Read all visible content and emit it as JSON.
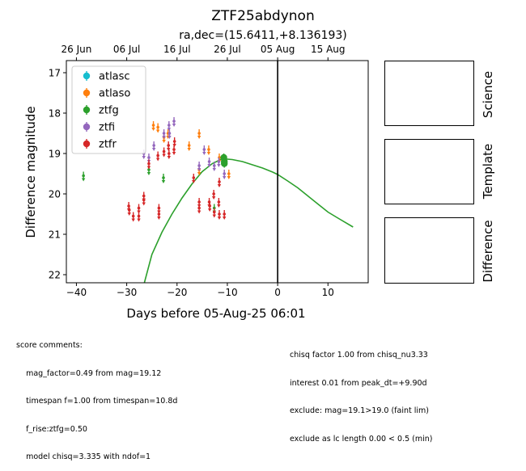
{
  "chart_data": {
    "type": "scatter",
    "title": "ZTF25abdynon",
    "subtitle": "ra,dec=(15.6411,+8.136193)",
    "xlabel": "Days before 05-Aug-25 06:01",
    "ylabel": "Difference magnitude",
    "xlim": [
      -42,
      18
    ],
    "ylim": [
      22.2,
      16.7
    ],
    "x_ticks": [
      -40,
      -30,
      -20,
      -10,
      0,
      10
    ],
    "y_ticks": [
      17,
      18,
      19,
      20,
      21,
      22
    ],
    "top_axis_ticks": [
      {
        "x": -40,
        "label": "26 Jun"
      },
      {
        "x": -30,
        "label": "06 Jul"
      },
      {
        "x": -20,
        "label": "16 Jul"
      },
      {
        "x": -10,
        "label": "26 Jul"
      },
      {
        "x": 0,
        "label": "05 Aug"
      },
      {
        "x": 10,
        "label": "15 Aug"
      }
    ],
    "reference_line_x": 0,
    "legend_position": "upper-left",
    "series": [
      {
        "name": "atlasc",
        "color": "#17becf",
        "points": []
      },
      {
        "name": "atlaso",
        "color": "#ff7f0e",
        "points": [
          {
            "x": -24.7,
            "y": 18.3,
            "err": 0.1,
            "limit": true
          },
          {
            "x": -23.8,
            "y": 18.35,
            "err": 0.1,
            "limit": true
          },
          {
            "x": -22.6,
            "y": 18.6,
            "err": 0.1,
            "limit": true
          },
          {
            "x": -21.8,
            "y": 18.5,
            "err": 0.1,
            "limit": true
          },
          {
            "x": -17.6,
            "y": 18.8,
            "err": 0.1,
            "limit": true
          },
          {
            "x": -15.6,
            "y": 18.5,
            "err": 0.1,
            "limit": true
          },
          {
            "x": -15.6,
            "y": 19.4,
            "err": 0.1,
            "limit": true
          },
          {
            "x": -13.7,
            "y": 18.9,
            "err": 0.1,
            "limit": true
          },
          {
            "x": -11.6,
            "y": 19.1,
            "err": 0.1,
            "limit": true
          },
          {
            "x": -9.7,
            "y": 19.5,
            "err": 0.1,
            "limit": true
          }
        ]
      },
      {
        "name": "ztfg",
        "color": "#2ca02c",
        "points": [
          {
            "x": -38.6,
            "y": 19.55,
            "err": 0.1,
            "limit": true
          },
          {
            "x": -25.6,
            "y": 19.4,
            "err": 0.1,
            "limit": true
          },
          {
            "x": -22.7,
            "y": 19.6,
            "err": 0.1,
            "limit": true
          },
          {
            "x": -12.6,
            "y": 20.35,
            "err": 0.1,
            "limit": true
          },
          {
            "x": -10.7,
            "y": 19.1,
            "err": 0.1,
            "limit": false
          },
          {
            "x": -10.6,
            "y": 19.2,
            "err": 0.1,
            "limit": false
          },
          {
            "x": -10.6,
            "y": 19.25,
            "err": 0.1,
            "limit": false
          }
        ]
      },
      {
        "name": "ztfi",
        "color": "#9467bd",
        "points": [
          {
            "x": -26.6,
            "y": 19.0,
            "err": 0.1,
            "limit": true
          },
          {
            "x": -25.6,
            "y": 19.1,
            "err": 0.1,
            "limit": true
          },
          {
            "x": -24.6,
            "y": 18.8,
            "err": 0.1,
            "limit": true
          },
          {
            "x": -22.6,
            "y": 18.5,
            "err": 0.1,
            "limit": true
          },
          {
            "x": -21.6,
            "y": 18.3,
            "err": 0.1,
            "limit": true
          },
          {
            "x": -21.5,
            "y": 18.5,
            "err": 0.1,
            "limit": true
          },
          {
            "x": -20.6,
            "y": 18.2,
            "err": 0.1,
            "limit": true
          },
          {
            "x": -15.6,
            "y": 19.3,
            "err": 0.1,
            "limit": true
          },
          {
            "x": -14.6,
            "y": 18.9,
            "err": 0.1,
            "limit": true
          },
          {
            "x": -13.6,
            "y": 19.2,
            "err": 0.1,
            "limit": true
          },
          {
            "x": -12.6,
            "y": 19.3,
            "err": 0.1,
            "limit": true
          },
          {
            "x": -11.7,
            "y": 19.2,
            "err": 0.1,
            "limit": true
          },
          {
            "x": -10.6,
            "y": 19.5,
            "err": 0.1,
            "limit": true
          }
        ]
      },
      {
        "name": "ztfr",
        "color": "#d62728",
        "points": [
          {
            "x": -29.6,
            "y": 20.3,
            "err": 0.1,
            "limit": true
          },
          {
            "x": -29.5,
            "y": 20.4,
            "err": 0.1,
            "limit": true
          },
          {
            "x": -28.7,
            "y": 20.55,
            "err": 0.1,
            "limit": true
          },
          {
            "x": -27.6,
            "y": 20.35,
            "err": 0.1,
            "limit": true
          },
          {
            "x": -27.6,
            "y": 20.55,
            "err": 0.1,
            "limit": true
          },
          {
            "x": -26.6,
            "y": 20.05,
            "err": 0.1,
            "limit": true
          },
          {
            "x": -26.6,
            "y": 20.15,
            "err": 0.1,
            "limit": true
          },
          {
            "x": -25.6,
            "y": 19.25,
            "err": 0.1,
            "limit": true
          },
          {
            "x": -23.8,
            "y": 19.05,
            "err": 0.1,
            "limit": true
          },
          {
            "x": -23.6,
            "y": 20.35,
            "err": 0.1,
            "limit": true
          },
          {
            "x": -23.6,
            "y": 20.5,
            "err": 0.1,
            "limit": true
          },
          {
            "x": -22.6,
            "y": 18.95,
            "err": 0.1,
            "limit": true
          },
          {
            "x": -21.7,
            "y": 18.8,
            "err": 0.1,
            "limit": true
          },
          {
            "x": -21.6,
            "y": 19.0,
            "err": 0.1,
            "limit": true
          },
          {
            "x": -20.6,
            "y": 18.9,
            "err": 0.1,
            "limit": true
          },
          {
            "x": -20.5,
            "y": 18.7,
            "err": 0.1,
            "limit": true
          },
          {
            "x": -16.7,
            "y": 19.6,
            "err": 0.1,
            "limit": true
          },
          {
            "x": -15.6,
            "y": 20.2,
            "err": 0.1,
            "limit": true
          },
          {
            "x": -15.6,
            "y": 20.35,
            "err": 0.1,
            "limit": true
          },
          {
            "x": -13.6,
            "y": 20.2,
            "err": 0.1,
            "limit": true
          },
          {
            "x": -13.5,
            "y": 20.3,
            "err": 0.1,
            "limit": true
          },
          {
            "x": -12.7,
            "y": 20.0,
            "err": 0.1,
            "limit": true
          },
          {
            "x": -12.6,
            "y": 20.45,
            "err": 0.1,
            "limit": true
          },
          {
            "x": -11.7,
            "y": 20.2,
            "err": 0.1,
            "limit": true
          },
          {
            "x": -11.6,
            "y": 19.7,
            "err": 0.1,
            "limit": true
          },
          {
            "x": -11.6,
            "y": 20.5,
            "err": 0.1,
            "limit": true
          },
          {
            "x": -10.6,
            "y": 20.5,
            "err": 0.1,
            "limit": true
          }
        ]
      }
    ],
    "model_curve": {
      "color": "#2ca02c",
      "points": [
        [
          -26.5,
          22.2
        ],
        [
          -25,
          21.5
        ],
        [
          -23,
          20.95
        ],
        [
          -21,
          20.5
        ],
        [
          -19,
          20.1
        ],
        [
          -17,
          19.75
        ],
        [
          -15,
          19.45
        ],
        [
          -13,
          19.25
        ],
        [
          -11,
          19.13
        ],
        [
          -9,
          19.15
        ],
        [
          -7,
          19.2
        ],
        [
          -5,
          19.28
        ],
        [
          -3,
          19.36
        ],
        [
          -1,
          19.46
        ],
        [
          0,
          19.52
        ],
        [
          2,
          19.68
        ],
        [
          4,
          19.85
        ],
        [
          6,
          20.05
        ],
        [
          8,
          20.25
        ],
        [
          10,
          20.45
        ],
        [
          12,
          20.6
        ],
        [
          15,
          20.82
        ]
      ]
    }
  },
  "panels": {
    "science": "Science",
    "template": "Template",
    "difference": "Difference"
  },
  "comments": {
    "left": [
      "score comments:",
      "    mag_factor=0.49 from mag=19.12",
      "    timespan f=1.00 from timespan=10.8d",
      "    f_rise:ztfg=0.50",
      "    model chisq=3.335 with ndof=1"
    ],
    "right": [
      "chisq factor 1.00 from chisq_nu3.33",
      "interest 0.01 from peak_dt=+9.90d",
      "exclude: mag=19.1>19.0 (faint lim)",
      "exclude as lc length 0.00 < 0.5 (min)"
    ]
  }
}
